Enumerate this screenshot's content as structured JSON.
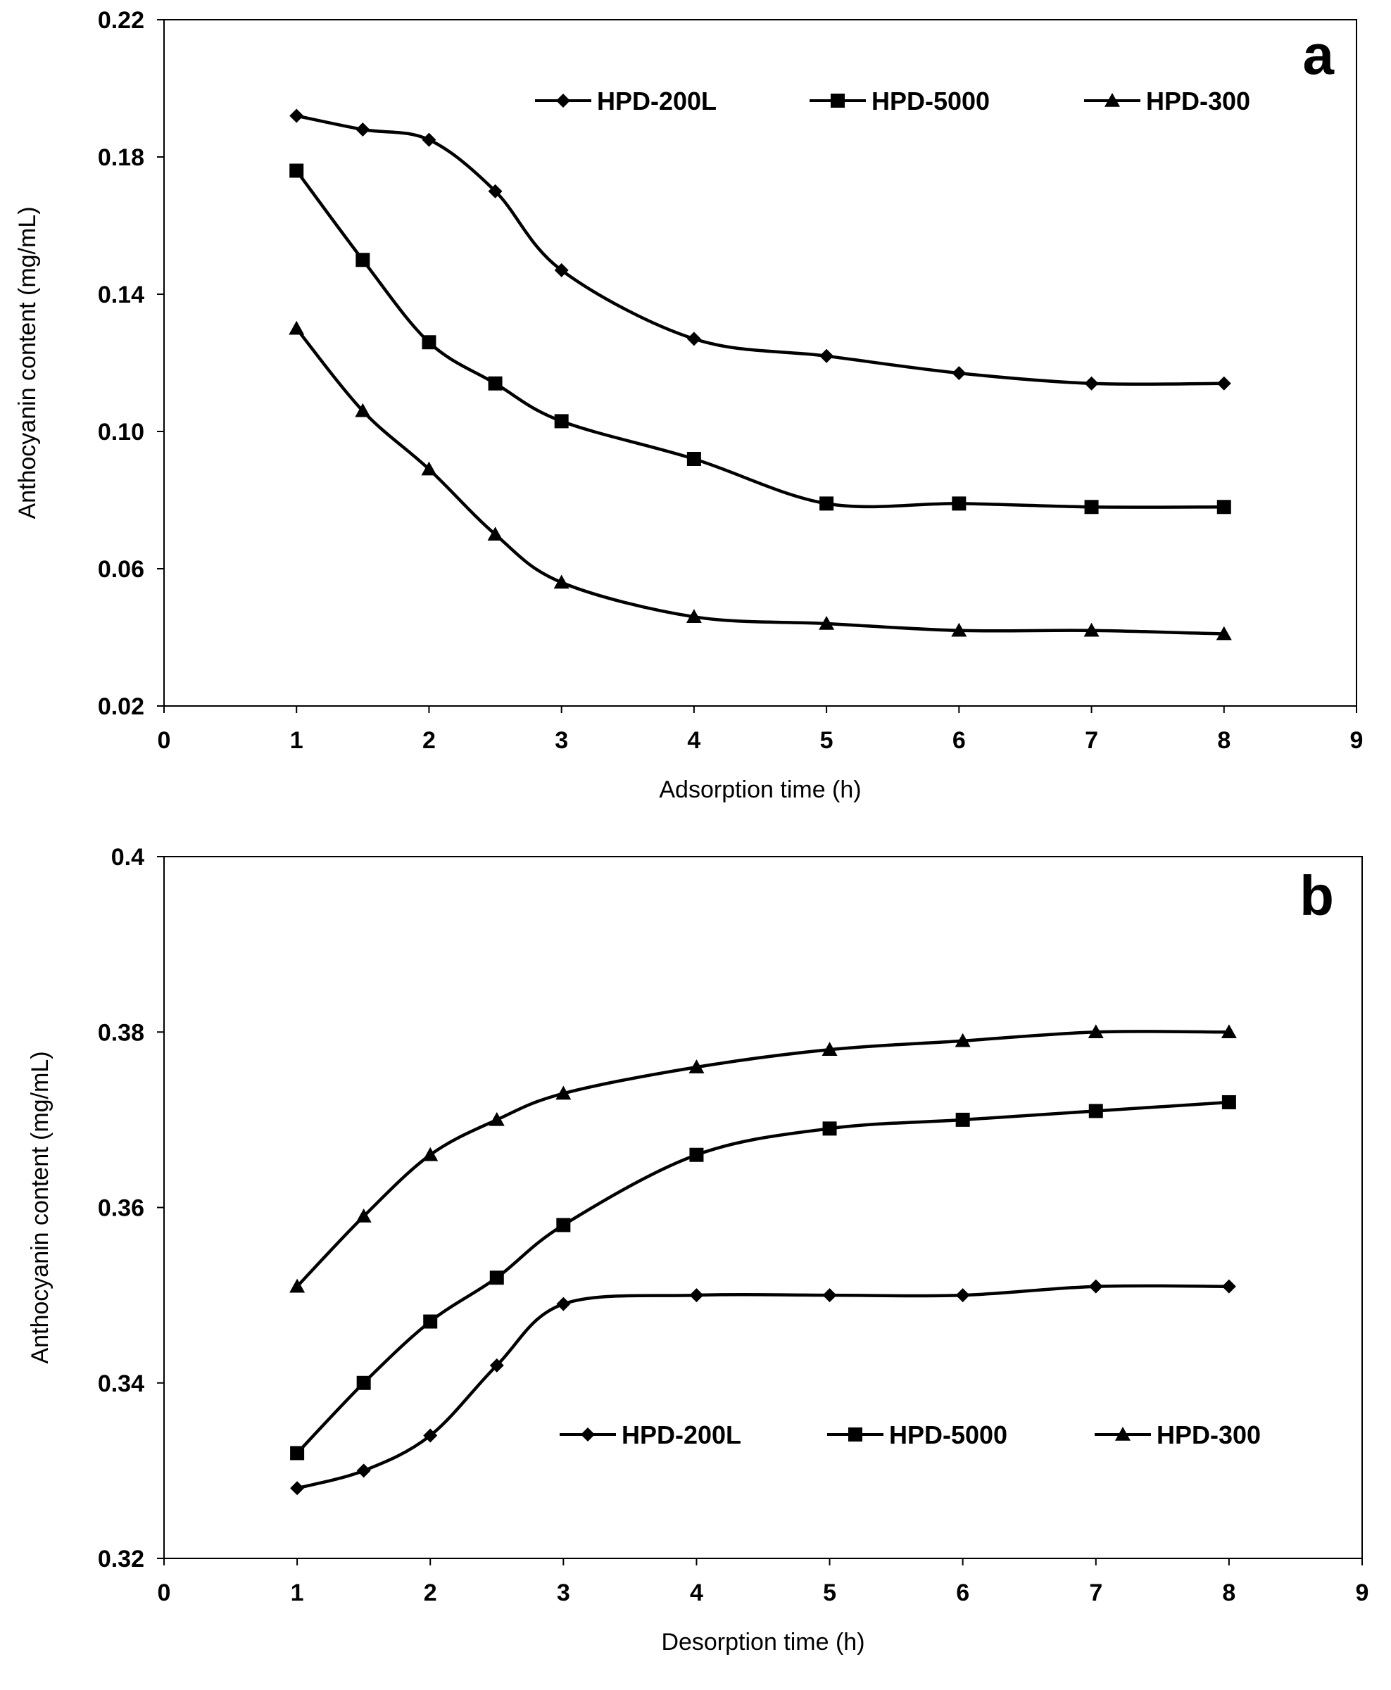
{
  "chart_data": [
    {
      "panel": "a",
      "type": "line",
      "xlabel": "Adsorption time (h)",
      "ylabel": "Anthocyanin content (mg/mL)",
      "xlim": [
        0,
        9
      ],
      "ylim": [
        0.02,
        0.22
      ],
      "xticks": [
        "0",
        "1",
        "2",
        "3",
        "4",
        "5",
        "6",
        "7",
        "8",
        "9"
      ],
      "yticks": [
        "0.02",
        "0.06",
        "0.10",
        "0.14",
        "0.18",
        "0.22"
      ],
      "legend_position": "top-right",
      "x": [
        1,
        1.5,
        2,
        2.5,
        3,
        4,
        5,
        6,
        7,
        8
      ],
      "series": [
        {
          "name": "HPD-200L",
          "marker": "diamond",
          "values": [
            0.192,
            0.188,
            0.185,
            0.17,
            0.147,
            0.127,
            0.122,
            0.117,
            0.114,
            0.114
          ]
        },
        {
          "name": "HPD-5000",
          "marker": "square",
          "values": [
            0.176,
            0.15,
            0.126,
            0.114,
            0.103,
            0.092,
            0.079,
            0.079,
            0.078,
            0.078
          ]
        },
        {
          "name": "HPD-300",
          "marker": "triangle",
          "values": [
            0.13,
            0.106,
            0.089,
            0.07,
            0.056,
            0.046,
            0.044,
            0.042,
            0.042,
            0.041
          ]
        }
      ]
    },
    {
      "panel": "b",
      "type": "line",
      "xlabel": "Desorption time (h)",
      "ylabel": "Anthocyanin content (mg/mL)",
      "xlim": [
        0,
        9
      ],
      "ylim": [
        0.32,
        0.4
      ],
      "xticks": [
        "0",
        "1",
        "2",
        "3",
        "4",
        "5",
        "6",
        "7",
        "8",
        "9"
      ],
      "yticks": [
        "0.32",
        "0.34",
        "0.36",
        "0.38",
        "0.4"
      ],
      "legend_position": "bottom-right",
      "x": [
        1,
        1.5,
        2,
        2.5,
        3,
        4,
        5,
        6,
        7,
        8
      ],
      "series": [
        {
          "name": "HPD-200L",
          "marker": "diamond",
          "values": [
            0.328,
            0.33,
            0.334,
            0.342,
            0.349,
            0.35,
            0.35,
            0.35,
            0.351,
            0.351
          ]
        },
        {
          "name": "HPD-5000",
          "marker": "square",
          "values": [
            0.332,
            0.34,
            0.347,
            0.352,
            0.358,
            0.366,
            0.369,
            0.37,
            0.371,
            0.372
          ]
        },
        {
          "name": "HPD-300",
          "marker": "triangle",
          "values": [
            0.351,
            0.359,
            0.366,
            0.37,
            0.373,
            0.376,
            0.378,
            0.379,
            0.38,
            0.38
          ]
        }
      ]
    }
  ]
}
